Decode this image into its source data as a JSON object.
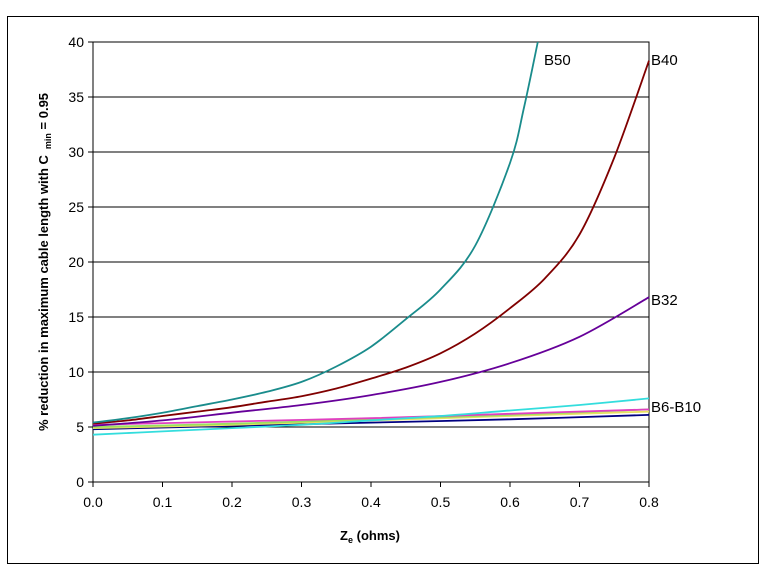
{
  "chart_data": {
    "type": "line",
    "title": "",
    "xlabel": {
      "main": "Z",
      "sub": "e",
      "rest": " (ohms)"
    },
    "ylabel": {
      "main": "% reduction in maximum cable length with C",
      "sub": "min",
      "rest": " = 0.95"
    },
    "xlim": [
      0,
      0.8
    ],
    "ylim": [
      0,
      40
    ],
    "grid": "horizontal",
    "x_ticks": [
      "0.0",
      "0.1",
      "0.2",
      "0.3",
      "0.4",
      "0.5",
      "0.6",
      "0.7",
      "0.8"
    ],
    "y_ticks": [
      "0",
      "5",
      "10",
      "15",
      "20",
      "25",
      "30",
      "35",
      "40"
    ],
    "series": [
      {
        "name": "B50",
        "color": "#1a8c8c",
        "x": [
          0,
          0.05,
          0.1,
          0.15,
          0.2,
          0.25,
          0.3,
          0.35,
          0.4,
          0.45,
          0.5,
          0.55,
          0.6,
          0.62,
          0.64
        ],
        "y": [
          5.4,
          5.8,
          6.3,
          6.9,
          7.5,
          8.2,
          9.1,
          10.5,
          12.3,
          14.8,
          17.5,
          21.5,
          29,
          34,
          40
        ]
      },
      {
        "name": "B40",
        "color": "#800000",
        "x": [
          0,
          0.05,
          0.1,
          0.15,
          0.2,
          0.25,
          0.3,
          0.35,
          0.4,
          0.45,
          0.5,
          0.55,
          0.6,
          0.65,
          0.7,
          0.75,
          0.8
        ],
        "y": [
          5.3,
          5.6,
          6.0,
          6.4,
          6.8,
          7.3,
          7.8,
          8.5,
          9.4,
          10.4,
          11.7,
          13.5,
          15.8,
          18.5,
          22.5,
          29.5,
          38.3
        ]
      },
      {
        "name": "B32",
        "color": "#660099",
        "x": [
          0,
          0.1,
          0.2,
          0.3,
          0.4,
          0.5,
          0.6,
          0.7,
          0.8
        ],
        "y": [
          5.1,
          5.6,
          6.3,
          7.0,
          7.9,
          9.1,
          10.8,
          13.2,
          16.8
        ]
      },
      {
        "name": "B6-B10 (cyan)",
        "color": "#33dddd",
        "x": [
          0,
          0.1,
          0.2,
          0.3,
          0.4,
          0.5,
          0.6,
          0.7,
          0.8
        ],
        "y": [
          4.3,
          4.6,
          4.9,
          5.2,
          5.6,
          6.0,
          6.5,
          7.0,
          7.6
        ]
      },
      {
        "name": "B6-B10 (magenta)",
        "color": "#e040c0",
        "x": [
          0,
          0.2,
          0.4,
          0.6,
          0.8
        ],
        "y": [
          5.2,
          5.5,
          5.8,
          6.2,
          6.6
        ]
      },
      {
        "name": "B6-B10 (green)",
        "color": "#99e060",
        "x": [
          0,
          0.2,
          0.4,
          0.6,
          0.8
        ],
        "y": [
          5.0,
          5.3,
          5.7,
          6.1,
          6.6
        ]
      },
      {
        "name": "B6-B10 (yellow)",
        "color": "#e8e060",
        "x": [
          0,
          0.2,
          0.4,
          0.6,
          0.8
        ],
        "y": [
          4.9,
          5.2,
          5.6,
          6.0,
          6.4
        ]
      },
      {
        "name": "B6-B10 (navy)",
        "color": "#000080",
        "x": [
          0,
          0.2,
          0.4,
          0.6,
          0.8
        ],
        "y": [
          4.8,
          5.1,
          5.4,
          5.7,
          6.1
        ]
      }
    ],
    "annotations": [
      {
        "text": "B50",
        "series": "B50"
      },
      {
        "text": "B40",
        "series": "B40"
      },
      {
        "text": "B32",
        "series": "B32"
      },
      {
        "text": "B6-B10",
        "series": "B6-B10"
      }
    ]
  }
}
